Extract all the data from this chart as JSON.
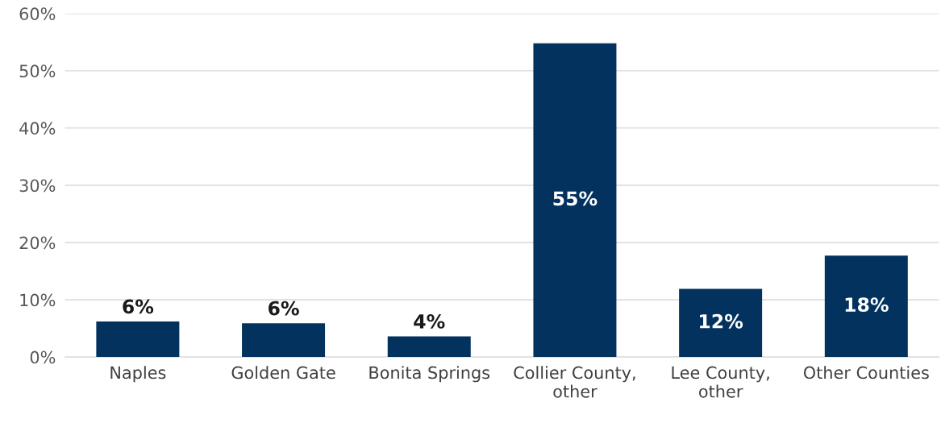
{
  "chart_data": {
    "type": "bar",
    "categories": [
      "Naples",
      "Golden Gate",
      "Bonita Springs",
      "Collier County, other",
      "Lee County, other",
      "Other Counties"
    ],
    "values": [
      6.2,
      5.9,
      3.6,
      54.8,
      11.9,
      17.7
    ],
    "value_labels": [
      "6%",
      "6%",
      "4%",
      "55%",
      "12%",
      "18%"
    ],
    "color": "#03325f",
    "ylim": [
      0,
      60
    ],
    "yticks": [
      {
        "value": 0,
        "label": "0%"
      },
      {
        "value": 10,
        "label": "10%"
      },
      {
        "value": 20,
        "label": "20%"
      },
      {
        "value": 30,
        "label": "30%"
      },
      {
        "value": 40,
        "label": "40%"
      },
      {
        "value": 50,
        "label": "50%"
      },
      {
        "value": 60,
        "label": "60%"
      }
    ],
    "grid": "y"
  }
}
